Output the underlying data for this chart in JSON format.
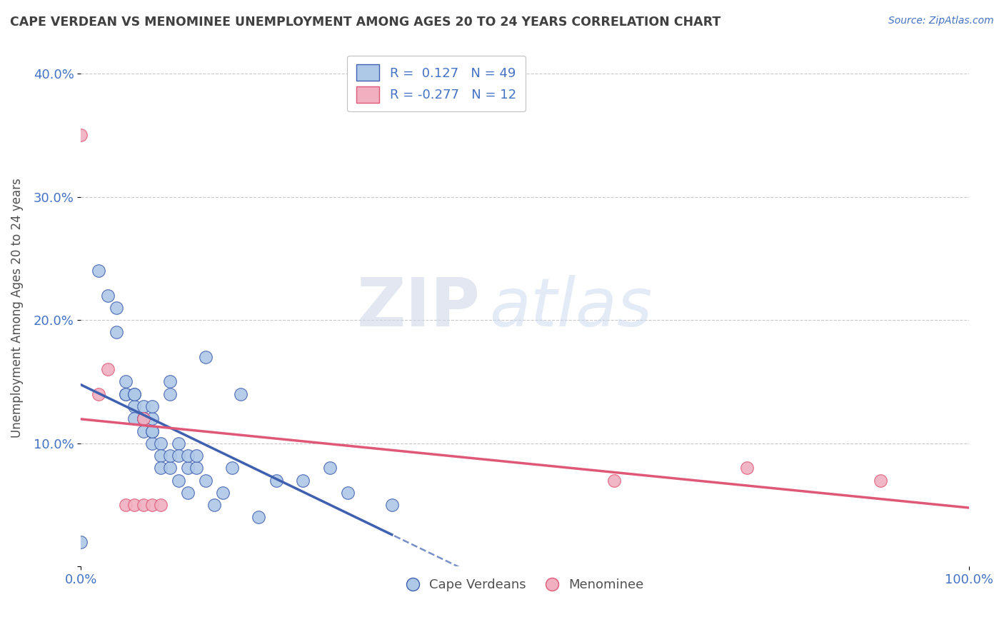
{
  "title": "CAPE VERDEAN VS MENOMINEE UNEMPLOYMENT AMONG AGES 20 TO 24 YEARS CORRELATION CHART",
  "source": "Source: ZipAtlas.com",
  "ylabel": "Unemployment Among Ages 20 to 24 years",
  "legend_label1": "R =  0.127   N = 49",
  "legend_label2": "R = -0.277   N = 12",
  "legend_label_cape": "Cape Verdeans",
  "legend_label_men": "Menominee",
  "color_blue": "#aec8e8",
  "color_pink": "#f0b0c0",
  "color_blue_line": "#4060b0",
  "color_pink_line": "#e05878",
  "color_grid": "#c8c8c8",
  "color_title": "#404040",
  "color_stat": "#4472c4",
  "background": "#ffffff",
  "cape_verdean_x": [
    0.0,
    0.02,
    0.03,
    0.04,
    0.04,
    0.05,
    0.05,
    0.05,
    0.06,
    0.06,
    0.06,
    0.06,
    0.07,
    0.07,
    0.07,
    0.07,
    0.07,
    0.08,
    0.08,
    0.08,
    0.08,
    0.08,
    0.09,
    0.09,
    0.09,
    0.1,
    0.1,
    0.1,
    0.1,
    0.11,
    0.11,
    0.11,
    0.12,
    0.12,
    0.12,
    0.13,
    0.13,
    0.14,
    0.14,
    0.15,
    0.16,
    0.17,
    0.18,
    0.2,
    0.22,
    0.25,
    0.28,
    0.3,
    0.35
  ],
  "cape_verdean_y": [
    0.02,
    0.24,
    0.22,
    0.19,
    0.21,
    0.14,
    0.14,
    0.15,
    0.13,
    0.14,
    0.14,
    0.12,
    0.13,
    0.12,
    0.12,
    0.12,
    0.11,
    0.11,
    0.12,
    0.1,
    0.11,
    0.13,
    0.1,
    0.09,
    0.08,
    0.15,
    0.14,
    0.08,
    0.09,
    0.1,
    0.09,
    0.07,
    0.08,
    0.09,
    0.06,
    0.08,
    0.09,
    0.17,
    0.07,
    0.05,
    0.06,
    0.08,
    0.14,
    0.04,
    0.07,
    0.07,
    0.08,
    0.06,
    0.05
  ],
  "menominee_x": [
    0.0,
    0.02,
    0.03,
    0.05,
    0.06,
    0.07,
    0.07,
    0.08,
    0.09,
    0.6,
    0.75,
    0.9
  ],
  "menominee_y": [
    0.35,
    0.14,
    0.16,
    0.05,
    0.05,
    0.05,
    0.12,
    0.05,
    0.05,
    0.07,
    0.08,
    0.07
  ],
  "xlim": [
    0.0,
    1.0
  ],
  "ylim": [
    0.0,
    0.42
  ],
  "yticks": [
    0.0,
    0.1,
    0.2,
    0.3,
    0.4
  ],
  "ytick_labels": [
    "",
    "10.0%",
    "20.0%",
    "30.0%",
    "40.0%"
  ],
  "xtick_labels": [
    "0.0%",
    "100.0%"
  ]
}
